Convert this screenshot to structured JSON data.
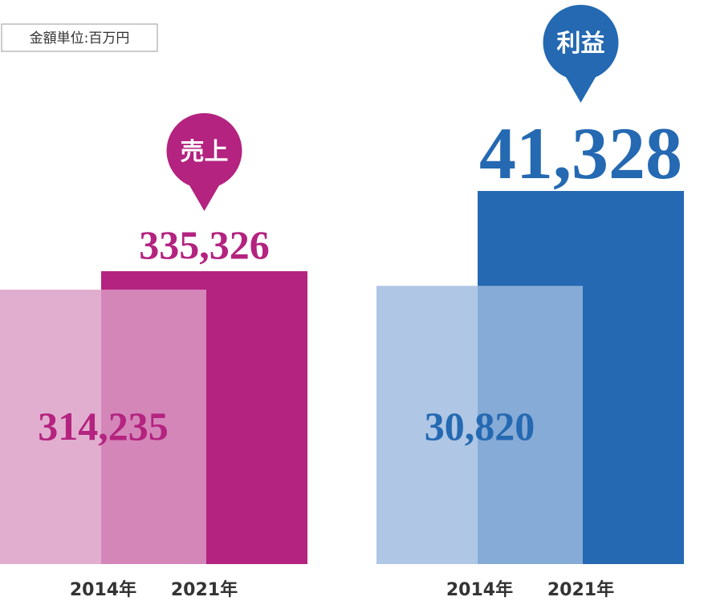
{
  "unit_note": "金額単位:百万円",
  "chart_data": [
    {
      "type": "bar",
      "title": "売上",
      "categories": [
        "2014年",
        "2021年"
      ],
      "values": [
        314235,
        335326
      ],
      "value_labels": [
        "314,235",
        "335,326"
      ],
      "colors": [
        "#dc9cc6",
        "#b3237f"
      ],
      "label_color": "#b3237f"
    },
    {
      "type": "bar",
      "title": "利益",
      "categories": [
        "2014年",
        "2021年"
      ],
      "values": [
        30820,
        41328
      ],
      "value_labels": [
        "30,820",
        "41,328"
      ],
      "colors": [
        "#9dbadf",
        "#2469b2"
      ],
      "label_color": "#2469b2"
    }
  ]
}
